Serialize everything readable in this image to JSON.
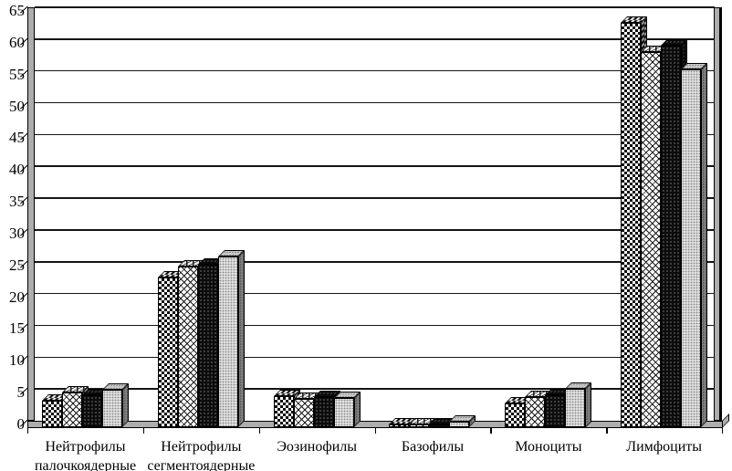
{
  "chart_data": {
    "type": "bar",
    "title": "",
    "subtitle": "",
    "style": "excel-3d-effect grouped bars, monochrome pattern fills, gray 3D walls and floor",
    "categories": [
      "Нейтрофилы\nпалочкоядерные",
      "Нейтрофилы\nсегментоядерные",
      "Эозинофилы",
      "Базофилы",
      "Моноциты",
      "Лимфоциты"
    ],
    "series": [
      {
        "name": "pattern-checkerboard",
        "values": [
          4.2,
          23.5,
          4.9,
          0.4,
          3.7,
          63.5
        ]
      },
      {
        "name": "pattern-diamond-lattice",
        "values": [
          5.5,
          25.3,
          4.4,
          0.5,
          4.8,
          59.0
        ]
      },
      {
        "name": "pattern-black-dotted",
        "values": [
          5.0,
          25.5,
          4.8,
          0.5,
          5.0,
          60.0
        ]
      },
      {
        "name": "pattern-light-gray-dotted",
        "values": [
          5.9,
          26.9,
          4.6,
          0.8,
          6.1,
          56.3
        ]
      }
    ],
    "xlabel": "",
    "ylabel": "",
    "ylim": [
      0,
      65
    ],
    "ytick_step": 5,
    "yticks": [
      0,
      5,
      10,
      15,
      20,
      25,
      30,
      35,
      40,
      45,
      50,
      55,
      60,
      65
    ],
    "grid": true,
    "legend": false,
    "colors": {
      "background": "#ffffff",
      "wall": "#adadad",
      "gridline": "#151515",
      "text": "#000000"
    }
  }
}
